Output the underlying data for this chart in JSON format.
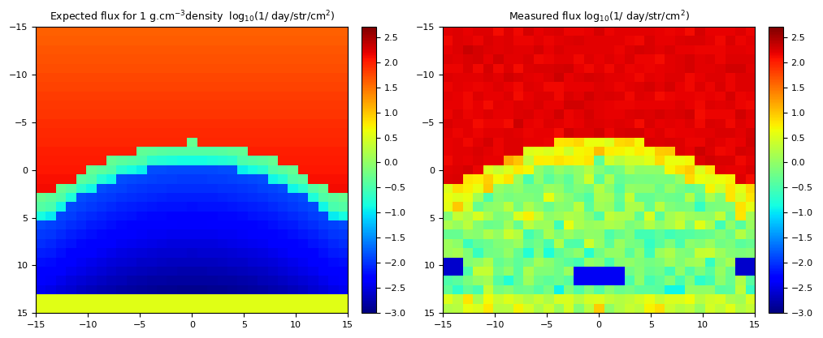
{
  "title1": "Expected flux for 1 g.cm$^{-3}$density  log$_{10}$(1/ day/str/cm$^{2}$)",
  "title2": "Measured flux log$_{10}$(1/ day/str/cm$^{2}$)",
  "x_ticks": [
    -15,
    -10,
    -5,
    0,
    5,
    10,
    15
  ],
  "y_ticks": [
    -15,
    -10,
    -5,
    0,
    5,
    10,
    15
  ],
  "vmin": -3,
  "vmax": 2.7,
  "cbar_ticks": [
    -3,
    -2.5,
    -2,
    -1.5,
    -1,
    -0.5,
    0,
    0.5,
    1,
    1.5,
    2,
    2.5
  ],
  "nx": 31,
  "ny": 31,
  "background": "#ffffff"
}
